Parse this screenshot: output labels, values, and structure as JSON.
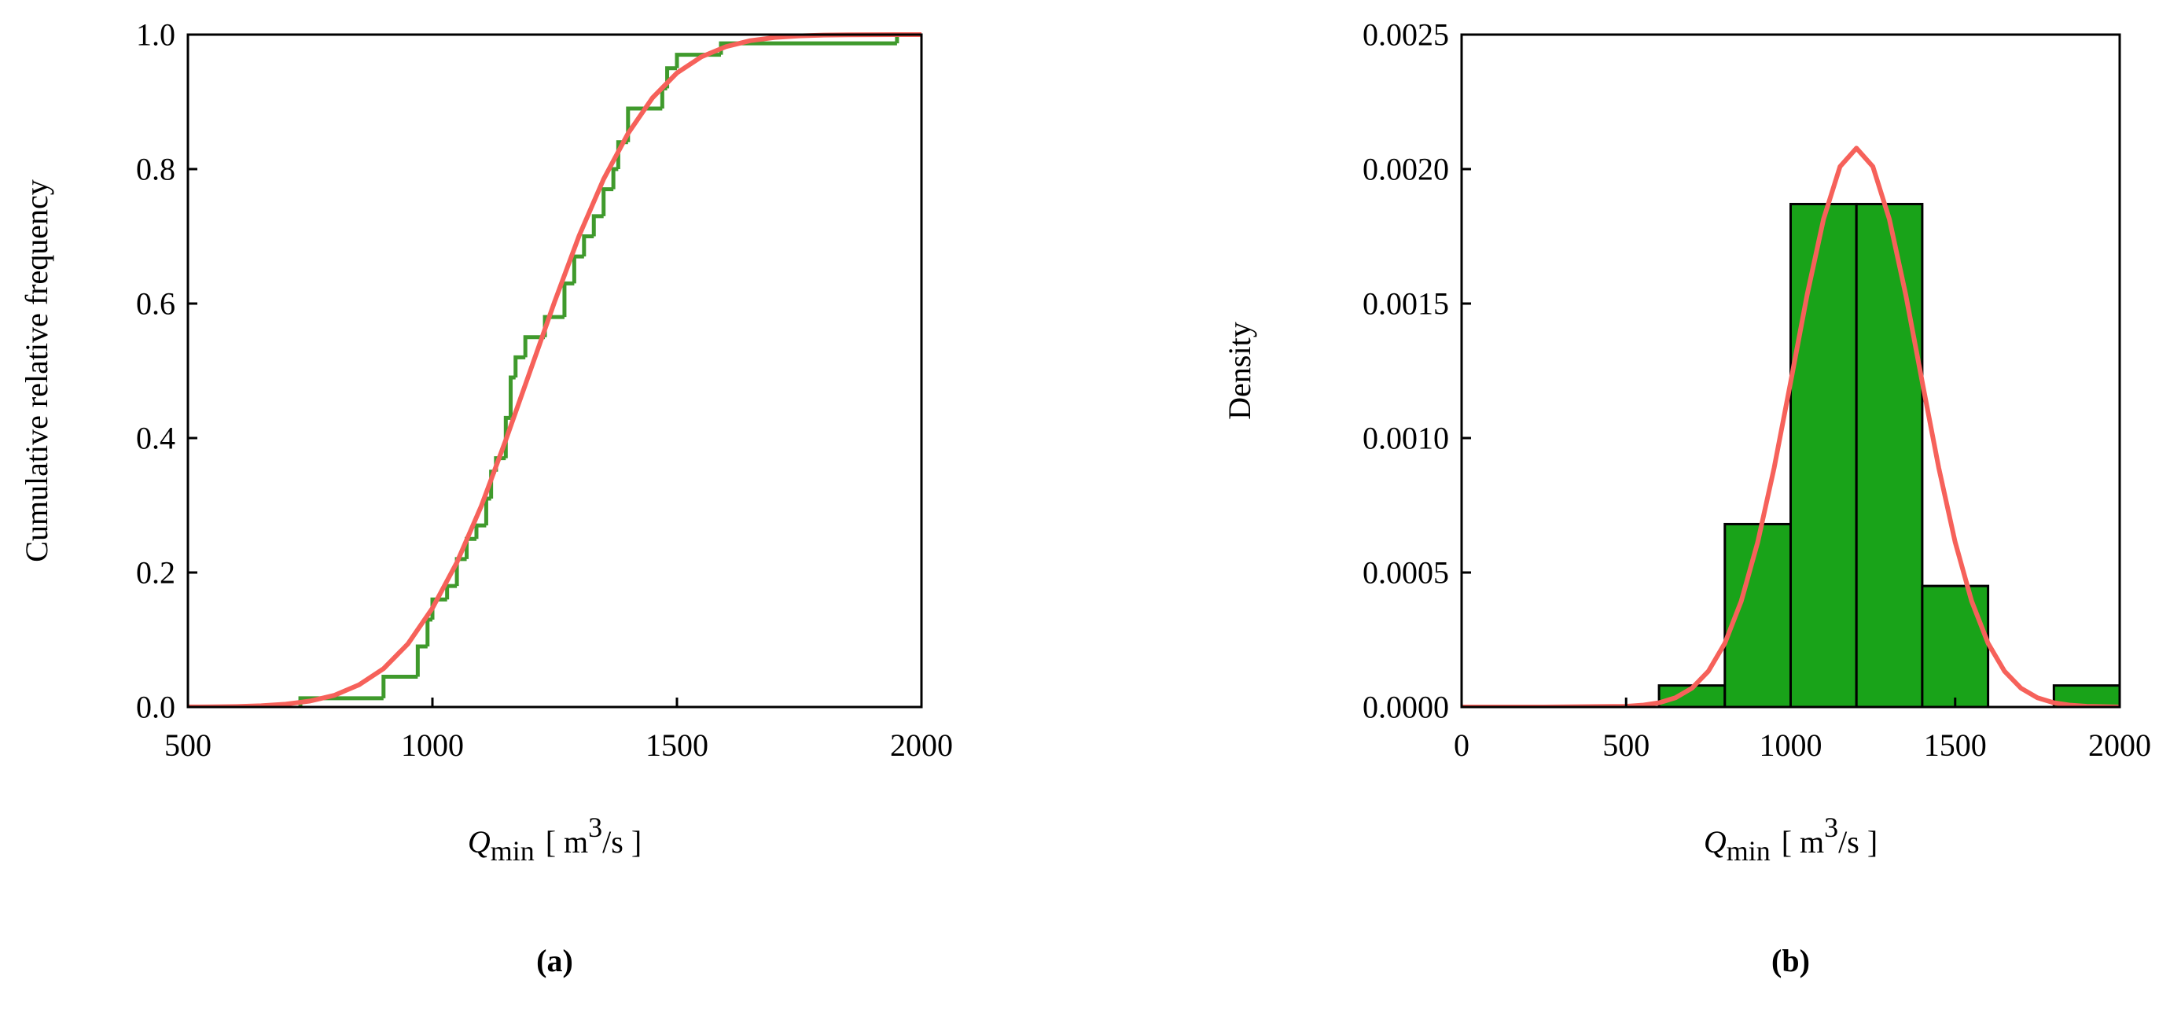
{
  "chart_data": [
    {
      "type": "line",
      "panel_label": "(a)",
      "ylabel": "Cumulative relative frequency",
      "xlabel": {
        "symbol": "Q",
        "subscript": "min",
        "unit_prefix": "[ m",
        "superscript": "3",
        "unit_suffix": "/s ]"
      },
      "xlim": [
        500,
        2000
      ],
      "xticks": [
        500,
        1000,
        1500,
        2000
      ],
      "ylim": [
        0,
        1
      ],
      "yticks": [
        {
          "value": 0,
          "label": "0.0"
        },
        0.2,
        0.4,
        0.6,
        0.8,
        {
          "value": 1,
          "label": "1.0"
        }
      ],
      "series": [
        {
          "color": "#3f9a2c",
          "step": true,
          "x": [
            730,
            900,
            970,
            990,
            1000,
            1030,
            1050,
            1070,
            1090,
            1110,
            1120,
            1130,
            1150,
            1160,
            1170,
            1190,
            1230,
            1270,
            1290,
            1310,
            1330,
            1350,
            1370,
            1380,
            1400,
            1470,
            1480,
            1500,
            1590,
            1950
          ],
          "values": [
            0.013,
            0.045,
            0.09,
            0.13,
            0.16,
            0.18,
            0.22,
            0.25,
            0.27,
            0.31,
            0.35,
            0.37,
            0.43,
            0.49,
            0.52,
            0.55,
            0.58,
            0.63,
            0.67,
            0.7,
            0.73,
            0.77,
            0.8,
            0.84,
            0.89,
            0.92,
            0.95,
            0.97,
            0.987,
            1
          ]
        },
        {
          "color": "#f6615a",
          "x": [
            500,
            550,
            600,
            650,
            700,
            750,
            800,
            850,
            900,
            950,
            1000,
            1050,
            1100,
            1150,
            1200,
            1250,
            1300,
            1350,
            1400,
            1450,
            1500,
            1550,
            1600,
            1650,
            1700,
            1750,
            1800,
            1850,
            1900,
            1950,
            2000
          ],
          "values": [
            0.0001,
            0.0003,
            0.0008,
            0.0019,
            0.0043,
            0.0089,
            0.0175,
            0.033,
            0.057,
            0.094,
            0.147,
            0.215,
            0.299,
            0.397,
            0.5,
            0.603,
            0.701,
            0.785,
            0.853,
            0.906,
            0.943,
            0.967,
            0.982,
            0.991,
            0.9957,
            0.9981,
            0.9992,
            0.9997,
            0.9999,
            1,
            1
          ]
        }
      ]
    },
    {
      "type": "histogram",
      "panel_label": "(b)",
      "ylabel": "Density",
      "xlabel": {
        "symbol": "Q",
        "subscript": "min",
        "unit_prefix": "[ m",
        "superscript": "3",
        "unit_suffix": "/s ]"
      },
      "xlim": [
        0,
        2000
      ],
      "xticks": [
        0,
        500,
        1000,
        1500,
        2000
      ],
      "ylim": [
        0,
        0.0025
      ],
      "yticks": [
        {
          "value": 0,
          "label": "0.0000"
        },
        {
          "value": 0.0005,
          "label": "0.0005"
        },
        {
          "value": 0.001,
          "label": "0.0010"
        },
        {
          "value": 0.0015,
          "label": "0.0015"
        },
        {
          "value": 0.002,
          "label": "0.0020"
        },
        {
          "value": 0.0025,
          "label": "0.0025"
        }
      ],
      "bins": [
        600,
        800,
        1000,
        1200,
        1400,
        1600,
        1800,
        2000
      ],
      "values": [
        8e-05,
        0.00068,
        0.00187,
        0.00187,
        0.00045,
        0,
        8e-05
      ],
      "color": "#19a319",
      "edgecolor": "#000000",
      "series": [
        {
          "color": "#f6615a",
          "x": [
            0,
            250,
            500,
            550,
            600,
            650,
            700,
            750,
            800,
            850,
            900,
            950,
            1000,
            1050,
            1100,
            1150,
            1200,
            1250,
            1300,
            1350,
            1400,
            1450,
            1500,
            1550,
            1600,
            1650,
            1700,
            1750,
            1800,
            1850,
            1900,
            2000
          ],
          "values": [
            0,
            0,
            2.7e-06,
            6.8e-06,
            1.58e-05,
            3.43e-05,
            7e-05,
            0.000133,
            0.000237,
            0.000394,
            0.000613,
            0.00089,
            0.001208,
            0.001532,
            0.001814,
            0.002009,
            0.002078,
            0.002009,
            0.001814,
            0.001532,
            0.001208,
            0.00089,
            0.000613,
            0.000394,
            0.000237,
            0.000133,
            7e-05,
            3.43e-05,
            1.58e-05,
            6.8e-06,
            2.7e-06,
            0
          ]
        }
      ]
    }
  ]
}
